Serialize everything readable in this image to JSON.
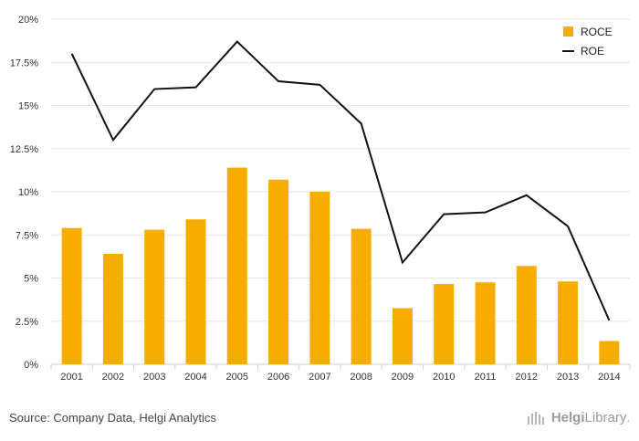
{
  "chart_data": {
    "type": "bar",
    "categories": [
      "2001",
      "2002",
      "2003",
      "2004",
      "2005",
      "2006",
      "2007",
      "2008",
      "2009",
      "2010",
      "2011",
      "2012",
      "2013",
      "2014"
    ],
    "series": [
      {
        "name": "ROCE",
        "type": "bar",
        "color": "#f7ad00",
        "values": [
          7.9,
          6.4,
          7.8,
          8.4,
          11.4,
          10.7,
          10.0,
          7.85,
          3.25,
          4.65,
          4.75,
          5.7,
          4.8,
          1.35
        ]
      },
      {
        "name": "ROE",
        "type": "line",
        "color": "#111111",
        "values": [
          18.0,
          13.0,
          15.95,
          16.05,
          18.7,
          16.4,
          16.2,
          13.95,
          5.9,
          8.7,
          8.8,
          9.8,
          8.0,
          2.55
        ]
      }
    ],
    "y_ticks": [
      "0%",
      "2.5%",
      "5%",
      "7.5%",
      "10%",
      "12.5%",
      "15%",
      "17.5%",
      "20%"
    ],
    "ylim": [
      0,
      20
    ],
    "grid": true,
    "legend": "top-right"
  },
  "footer": {
    "source": "Source: Company Data, Helgi Analytics",
    "brand_helgi": "Helgi",
    "brand_library": "Library",
    "brand_dot": "."
  }
}
